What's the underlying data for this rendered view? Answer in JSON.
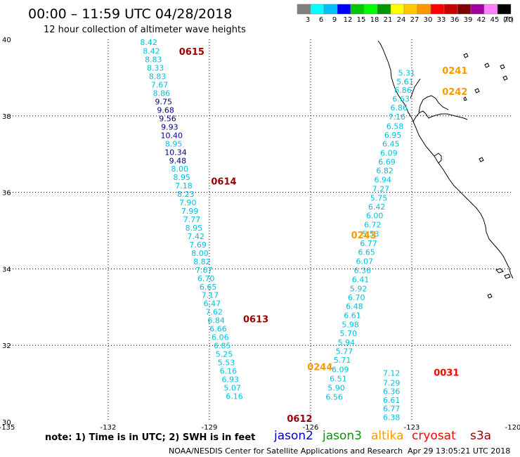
{
  "title": "00:00 – 11:59 UTC 04/28/2018",
  "subtitle": "12 hour collection of altimeter wave heights",
  "color_scale": {
    "labels": [
      "3",
      "6",
      "9",
      "12",
      "15",
      "18",
      "21",
      "24",
      "27",
      "30",
      "33",
      "36",
      "39",
      "42",
      "45",
      "70"
    ],
    "unit": "(ft)",
    "colors": [
      "#808080",
      "#00ffff",
      "#00bfff",
      "#0000ff",
      "#00c800",
      "#00ff00",
      "#009600",
      "#ffff00",
      "#ffc800",
      "#ff9600",
      "#ff0000",
      "#c80000",
      "#800000",
      "#a000a0",
      "#ff80ff",
      "#000000"
    ]
  },
  "axes": {
    "x_ticks": [
      "-135",
      "-132",
      "-129",
      "-126",
      "-123",
      "-120"
    ],
    "y_ticks": [
      "40",
      "38",
      "36",
      "34",
      "32",
      "30"
    ]
  },
  "colors": {
    "jason2": "#0000cc",
    "jason3": "#009900",
    "altika": "#ff9900",
    "cryosat": "#ff0000",
    "s3a": "#990000",
    "swh_light": "#00c0e0",
    "swh_dark": "#000090"
  },
  "tracks": [
    {
      "satellite": "s3a",
      "labels": [
        {
          "text": "0615",
          "lon": -129.9,
          "lat": 39.6
        },
        {
          "text": "0614",
          "lon": -128.95,
          "lat": 36.2
        },
        {
          "text": "0613",
          "lon": -128.0,
          "lat": 32.6
        },
        {
          "text": "0612",
          "lon": -126.7,
          "lat": 30.0
        }
      ],
      "points": [
        {
          "lon": -130.8,
          "lat": 39.85,
          "swh": "8.42"
        },
        {
          "lon": -130.72,
          "lat": 39.62,
          "swh": "8.42"
        },
        {
          "lon": -130.66,
          "lat": 39.4,
          "swh": "8.83"
        },
        {
          "lon": -130.6,
          "lat": 39.18,
          "swh": "8.33"
        },
        {
          "lon": -130.54,
          "lat": 38.96,
          "swh": "8.83"
        },
        {
          "lon": -130.48,
          "lat": 38.74,
          "swh": "7.67"
        },
        {
          "lon": -130.42,
          "lat": 38.52,
          "swh": "8.86"
        },
        {
          "lon": -130.36,
          "lat": 38.3,
          "swh": "9.75"
        },
        {
          "lon": -130.3,
          "lat": 38.08,
          "swh": "9.68"
        },
        {
          "lon": -130.24,
          "lat": 37.86,
          "swh": "9.56"
        },
        {
          "lon": -130.18,
          "lat": 37.64,
          "swh": "9.93"
        },
        {
          "lon": -130.12,
          "lat": 37.42,
          "swh": "10.40"
        },
        {
          "lon": -130.06,
          "lat": 37.2,
          "swh": "8.95"
        },
        {
          "lon": -130.0,
          "lat": 36.98,
          "swh": "10.34"
        },
        {
          "lon": -129.94,
          "lat": 36.76,
          "swh": "9.48"
        },
        {
          "lon": -129.88,
          "lat": 36.54,
          "swh": "8.00"
        },
        {
          "lon": -129.82,
          "lat": 36.32,
          "swh": "8.95"
        },
        {
          "lon": -129.76,
          "lat": 36.1,
          "swh": "7.18"
        },
        {
          "lon": -129.7,
          "lat": 35.88,
          "swh": "8.23"
        },
        {
          "lon": -129.64,
          "lat": 35.66,
          "swh": "7.90"
        },
        {
          "lon": -129.58,
          "lat": 35.44,
          "swh": "7.99"
        },
        {
          "lon": -129.52,
          "lat": 35.22,
          "swh": "7.77"
        },
        {
          "lon": -129.46,
          "lat": 35.0,
          "swh": "8.95"
        },
        {
          "lon": -129.4,
          "lat": 34.78,
          "swh": "7.42"
        },
        {
          "lon": -129.34,
          "lat": 34.56,
          "swh": "7.69"
        },
        {
          "lon": -129.28,
          "lat": 34.34,
          "swh": "8.00"
        },
        {
          "lon": -129.22,
          "lat": 34.12,
          "swh": "8.82"
        },
        {
          "lon": -129.16,
          "lat": 33.9,
          "swh": "7.67"
        },
        {
          "lon": -129.1,
          "lat": 33.68,
          "swh": "6.70"
        },
        {
          "lon": -129.04,
          "lat": 33.46,
          "swh": "6.65"
        },
        {
          "lon": -128.98,
          "lat": 33.24,
          "swh": "7.17"
        },
        {
          "lon": -128.92,
          "lat": 33.02,
          "swh": "6.47"
        },
        {
          "lon": -128.86,
          "lat": 32.8,
          "swh": "7.62"
        },
        {
          "lon": -128.8,
          "lat": 32.58,
          "swh": "6.84"
        },
        {
          "lon": -128.74,
          "lat": 32.36,
          "swh": "6.66"
        },
        {
          "lon": -128.68,
          "lat": 32.14,
          "swh": "6.06"
        },
        {
          "lon": -128.62,
          "lat": 31.92,
          "swh": "6.85"
        },
        {
          "lon": -128.56,
          "lat": 31.7,
          "swh": "5.25"
        },
        {
          "lon": -128.5,
          "lat": 31.48,
          "swh": "5.53"
        },
        {
          "lon": -128.44,
          "lat": 31.26,
          "swh": "6.16"
        },
        {
          "lon": -128.38,
          "lat": 31.04,
          "swh": "6.93"
        },
        {
          "lon": -128.32,
          "lat": 30.82,
          "swh": "5.07"
        },
        {
          "lon": -128.26,
          "lat": 30.6,
          "swh": "6.16"
        }
      ]
    },
    {
      "satellite": "altika",
      "labels": [
        {
          "text": "0241",
          "lon": -122.1,
          "lat": 39.1
        },
        {
          "text": "0242",
          "lon": -122.1,
          "lat": 38.55
        },
        {
          "text": "0243",
          "lon": -124.8,
          "lat": 34.8
        },
        {
          "text": "0244",
          "lon": -126.1,
          "lat": 31.35
        }
      ],
      "points": [
        {
          "lon": -123.15,
          "lat": 39.05,
          "swh": "5.31"
        },
        {
          "lon": -123.2,
          "lat": 38.82,
          "swh": "5.61"
        },
        {
          "lon": -123.26,
          "lat": 38.6,
          "swh": "6.86"
        },
        {
          "lon": -123.32,
          "lat": 38.37,
          "swh": "6.63"
        },
        {
          "lon": -123.38,
          "lat": 38.14,
          "swh": "6.86"
        },
        {
          "lon": -123.44,
          "lat": 37.9,
          "swh": "7.16"
        },
        {
          "lon": -123.5,
          "lat": 37.66,
          "swh": "6.58"
        },
        {
          "lon": -123.56,
          "lat": 37.43,
          "swh": "6.95"
        },
        {
          "lon": -123.62,
          "lat": 37.2,
          "swh": "6.45"
        },
        {
          "lon": -123.68,
          "lat": 36.96,
          "swh": "6.09"
        },
        {
          "lon": -123.74,
          "lat": 36.73,
          "swh": "6.69"
        },
        {
          "lon": -123.8,
          "lat": 36.5,
          "swh": "6.82"
        },
        {
          "lon": -123.86,
          "lat": 36.26,
          "swh": "6.94"
        },
        {
          "lon": -123.92,
          "lat": 36.02,
          "swh": "7.27"
        },
        {
          "lon": -123.98,
          "lat": 35.78,
          "swh": "5.75"
        },
        {
          "lon": -124.04,
          "lat": 35.55,
          "swh": "6.42"
        },
        {
          "lon": -124.1,
          "lat": 35.32,
          "swh": "6.00"
        },
        {
          "lon": -124.16,
          "lat": 35.08,
          "swh": "6.72"
        },
        {
          "lon": -124.22,
          "lat": 34.84,
          "swh": "5.53"
        },
        {
          "lon": -124.28,
          "lat": 34.6,
          "swh": "6.77"
        },
        {
          "lon": -124.34,
          "lat": 34.37,
          "swh": "6.65"
        },
        {
          "lon": -124.4,
          "lat": 34.13,
          "swh": "6.07"
        },
        {
          "lon": -124.46,
          "lat": 33.89,
          "swh": "6.36"
        },
        {
          "lon": -124.52,
          "lat": 33.65,
          "swh": "6.41"
        },
        {
          "lon": -124.58,
          "lat": 33.41,
          "swh": "5.92"
        },
        {
          "lon": -124.64,
          "lat": 33.18,
          "swh": "6.70"
        },
        {
          "lon": -124.7,
          "lat": 32.95,
          "swh": "6.48"
        },
        {
          "lon": -124.76,
          "lat": 32.71,
          "swh": "6.61"
        },
        {
          "lon": -124.82,
          "lat": 32.47,
          "swh": "5.98"
        },
        {
          "lon": -124.88,
          "lat": 32.24,
          "swh": "5.70"
        },
        {
          "lon": -124.94,
          "lat": 32.0,
          "swh": "5.94"
        },
        {
          "lon": -125.0,
          "lat": 31.77,
          "swh": "5.77"
        },
        {
          "lon": -125.06,
          "lat": 31.54,
          "swh": "5.71"
        },
        {
          "lon": -125.12,
          "lat": 31.3,
          "swh": "6.09"
        },
        {
          "lon": -125.18,
          "lat": 31.06,
          "swh": "6.51"
        },
        {
          "lon": -125.24,
          "lat": 30.82,
          "swh": "5.90"
        },
        {
          "lon": -125.3,
          "lat": 30.58,
          "swh": "6.56"
        }
      ]
    },
    {
      "satellite": "cryosat",
      "labels": [
        {
          "text": "0031",
          "lon": -122.35,
          "lat": 31.2
        }
      ],
      "points": [
        {
          "lon": -123.6,
          "lat": 31.2,
          "swh": "7.12"
        },
        {
          "lon": -123.6,
          "lat": 30.95,
          "swh": "7.29"
        },
        {
          "lon": -123.6,
          "lat": 30.73,
          "swh": "6.36"
        },
        {
          "lon": -123.6,
          "lat": 30.5,
          "swh": "6.61"
        },
        {
          "lon": -123.6,
          "lat": 30.28,
          "swh": "6.77"
        },
        {
          "lon": -123.6,
          "lat": 30.05,
          "swh": "6.38"
        }
      ]
    }
  ],
  "note": "note: 1) Time is in UTC; 2) SWH is in feet",
  "satellite_legend": [
    "jason2",
    "jason3",
    "altika",
    "cryosat",
    "s3a"
  ],
  "credit": "NOAA/NESDIS Center for Satellite Applications and Research",
  "timestamp": "Apr 29 13:05:21 UTC 2018"
}
